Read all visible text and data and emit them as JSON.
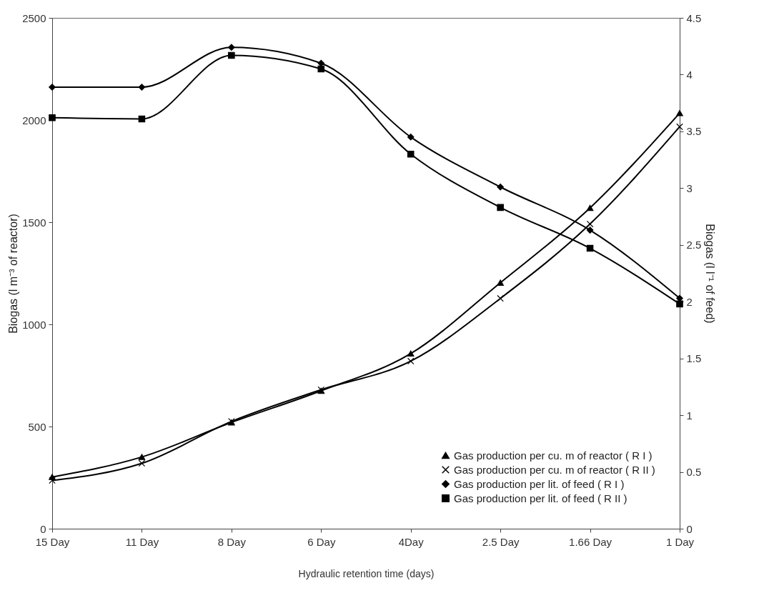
{
  "chart_data": {
    "type": "line",
    "xlabel": "Hydraulic retention time (days)",
    "ylabel": "Biogas (l m⁻³ of reactor)",
    "y2label": "Biogas (l l⁻¹ of feed)",
    "categories": [
      "15 Day",
      "11 Day",
      "8 Day",
      "6 Day",
      "4Day",
      "2.5 Day",
      "1.66 Day",
      "1 Day"
    ],
    "series": [
      {
        "name": "Gas production per cu. m of reactor ( R I )",
        "color": "#000000",
        "marker": "triangle",
        "values": [
          253,
          351,
          520,
          675,
          857,
          1204,
          1570,
          2034
        ]
      },
      {
        "name": "Gas production per cu. m of reactor ( R II )",
        "color": "#000000",
        "marker": "cross",
        "values": [
          236,
          320,
          525,
          680,
          820,
          1127,
          1491,
          1967
        ]
      },
      {
        "name": "Gas production per lit. of feed ( R I )",
        "color": "#000000",
        "marker": "diamond",
        "axis": "y2",
        "values": [
          3.89,
          3.89,
          4.24,
          4.1,
          3.45,
          3.01,
          2.63,
          2.03
        ]
      },
      {
        "name": "Gas production per lit. of feed ( R II )",
        "color": "#000000",
        "marker": "square",
        "axis": "y2",
        "values": [
          3.62,
          3.61,
          4.17,
          4.05,
          3.3,
          2.83,
          2.47,
          1.98
        ]
      }
    ],
    "ylim": [
      0,
      2500
    ],
    "yticks": [
      0,
      500,
      1000,
      1500,
      2000,
      2500
    ],
    "y2lim": [
      0,
      4.5
    ],
    "y2ticks": [
      0,
      0.5,
      1,
      1.5,
      2,
      2.5,
      3,
      3.5,
      4,
      4.5
    ],
    "grid": false,
    "legend": "bottom right",
    "line_style": "solid"
  }
}
